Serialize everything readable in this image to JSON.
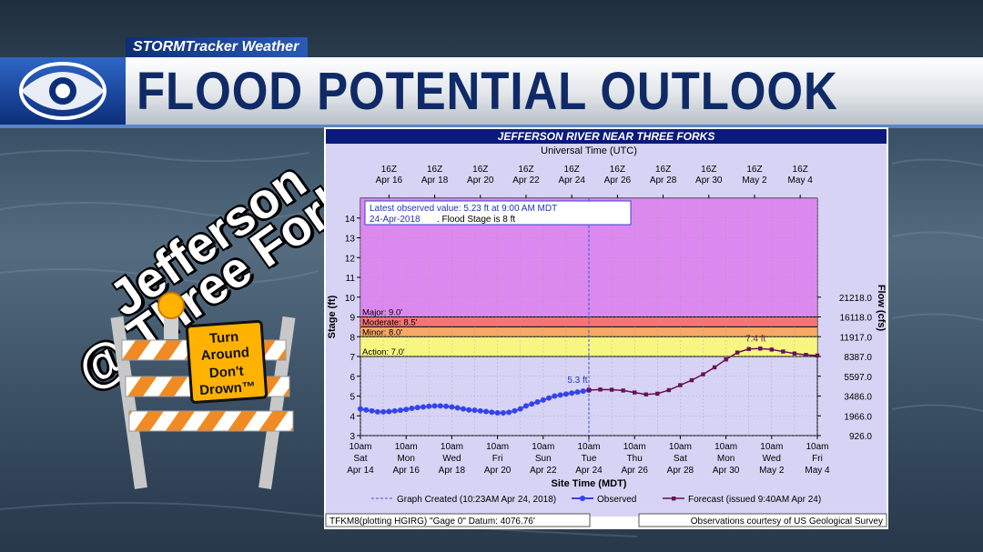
{
  "brand": "STORMTracker Weather",
  "title": "FLOOD POTENTIAL OUTLOOK",
  "overlay": {
    "line1": "Jefferson",
    "line2": "@ Three Forks"
  },
  "sign": {
    "lines": [
      "Turn",
      "Around",
      "Don't",
      "Drown™"
    ]
  },
  "chart_data": {
    "type": "line",
    "title": "JEFFERSON RIVER NEAR THREE FORKS",
    "top_axis_title": "Universal Time (UTC)",
    "top_ticks": [
      [
        "16Z",
        "Apr 16"
      ],
      [
        "16Z",
        "Apr 18"
      ],
      [
        "16Z",
        "Apr 20"
      ],
      [
        "16Z",
        "Apr 22"
      ],
      [
        "16Z",
        "Apr 24"
      ],
      [
        "16Z",
        "Apr 26"
      ],
      [
        "16Z",
        "Apr 28"
      ],
      [
        "16Z",
        "Apr 30"
      ],
      [
        "16Z",
        "May 2"
      ],
      [
        "16Z",
        "May 4"
      ]
    ],
    "bottom_axis_title": "Site Time (MDT)",
    "bottom_ticks": [
      [
        "10am",
        "Sat",
        "Apr 14"
      ],
      [
        "10am",
        "Mon",
        "Apr 16"
      ],
      [
        "10am",
        "Wed",
        "Apr 18"
      ],
      [
        "10am",
        "Fri",
        "Apr 20"
      ],
      [
        "10am",
        "Sun",
        "Apr 22"
      ],
      [
        "10am",
        "Tue",
        "Apr 24"
      ],
      [
        "10am",
        "Thu",
        "Apr 26"
      ],
      [
        "10am",
        "Sat",
        "Apr 28"
      ],
      [
        "10am",
        "Mon",
        "Apr 30"
      ],
      [
        "10am",
        "Wed",
        "May 2"
      ],
      [
        "10am",
        "Fri",
        "May 4"
      ]
    ],
    "ylabel": "Stage (ft)",
    "y2label": "Flow (cfs)",
    "ylim": [
      3,
      15
    ],
    "yticks": [
      3,
      4,
      5,
      6,
      7,
      8,
      9,
      10,
      11,
      12,
      13,
      14
    ],
    "flow_ticks": [
      {
        "stage": 3,
        "label": "926.0"
      },
      {
        "stage": 4,
        "label": "1966.0"
      },
      {
        "stage": 5,
        "label": "3486.0"
      },
      {
        "stage": 6,
        "label": "5597.0"
      },
      {
        "stage": 7,
        "label": "8387.0"
      },
      {
        "stage": 8,
        "label": "11917.0"
      },
      {
        "stage": 9,
        "label": "16118.0"
      },
      {
        "stage": 10,
        "label": "21218.0"
      }
    ],
    "flood_categories": [
      {
        "name": "Action: 7.0'",
        "from": 7,
        "to": 8,
        "color": "#ffff66"
      },
      {
        "name": "Minor: 8.0'",
        "from": 8,
        "to": 8.5,
        "color": "#ffa040"
      },
      {
        "name": "Moderate: 8.5'",
        "from": 8.5,
        "to": 9,
        "color": "#ff5a5a"
      },
      {
        "name": "Major: 9.0'",
        "from": 9,
        "to": 15,
        "color": "#dd77ee"
      }
    ],
    "below_color": "#d7d3f4",
    "latest_note_1": "Latest observed value: 5.23 ft at 9:00 AM MDT",
    "latest_note_2a": "24-Apr-2018",
    "latest_note_2b": ". Flood Stage is 8 ft",
    "observed_peak_label": "5.3 ft",
    "forecast_peak_label": "7.4 ft",
    "series": [
      {
        "name": "Observed",
        "color": "#3344ee",
        "x": [
          0,
          0.25,
          0.5,
          0.75,
          1,
          1.25,
          1.5,
          1.75,
          2,
          2.25,
          2.5,
          2.75,
          3,
          3.25,
          3.5,
          3.75,
          4,
          4.25,
          4.5,
          4.75,
          5,
          5.25,
          5.5,
          5.75,
          6,
          6.25,
          6.5,
          6.75,
          7,
          7.25,
          7.5,
          7.75,
          8,
          8.25,
          8.5,
          8.75,
          9,
          9.25,
          9.5,
          9.75,
          10
        ],
        "y": [
          4.35,
          4.3,
          4.25,
          4.2,
          4.2,
          4.22,
          4.25,
          4.28,
          4.32,
          4.38,
          4.42,
          4.45,
          4.48,
          4.5,
          4.5,
          4.48,
          4.45,
          4.4,
          4.35,
          4.3,
          4.28,
          4.25,
          4.22,
          4.18,
          4.15,
          4.15,
          4.18,
          4.25,
          4.35,
          4.5,
          4.6,
          4.7,
          4.8,
          4.9,
          5.0,
          5.05,
          5.1,
          5.15,
          5.2,
          5.25,
          5.3
        ]
      },
      {
        "name": "Forecast (issued 9:40AM Apr 24)",
        "color": "#661155",
        "x": [
          10,
          10.5,
          11,
          11.5,
          12,
          12.5,
          13,
          13.5,
          14,
          14.5,
          15,
          15.5,
          16,
          16.5,
          17,
          17.5,
          18,
          18.5,
          19,
          19.5,
          20
        ],
        "y": [
          5.3,
          5.33,
          5.32,
          5.28,
          5.18,
          5.08,
          5.12,
          5.3,
          5.55,
          5.8,
          6.1,
          6.45,
          6.85,
          7.2,
          7.38,
          7.4,
          7.35,
          7.25,
          7.15,
          7.08,
          7.05
        ]
      }
    ],
    "xlim": [
      0,
      20
    ],
    "graph_created_x": 10,
    "legend": {
      "graph_created": "Graph Created (10:23AM Apr 24, 2018)",
      "observed": "Observed",
      "forecast": "Forecast (issued 9:40AM Apr 24)"
    },
    "footer_left": "TFKM8(plotting HGIRG) \"Gage 0\" Datum: 4076.76'",
    "footer_right": "Observations courtesy of US Geological Survey"
  }
}
